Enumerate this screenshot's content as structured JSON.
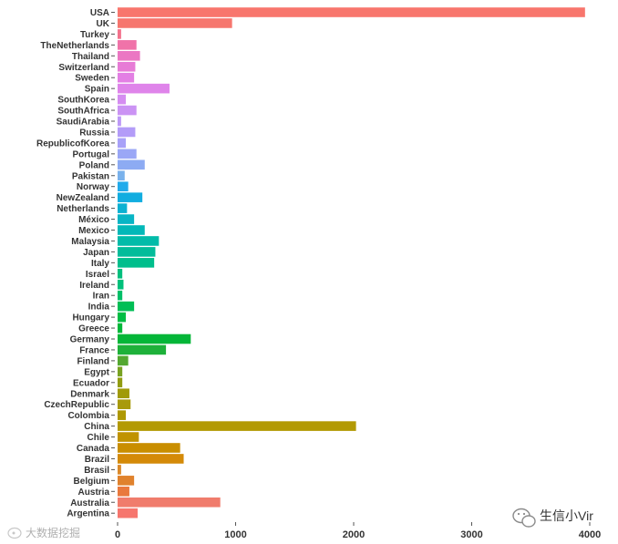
{
  "chart_data": {
    "type": "bar",
    "orientation": "horizontal",
    "title": "",
    "xlabel": "",
    "ylabel": "",
    "xlim": [
      0,
      4000
    ],
    "xticks": [
      0,
      1000,
      2000,
      3000,
      4000
    ],
    "grid": false,
    "legend": "none",
    "categories": [
      "USA",
      "UK",
      "Turkey",
      "TheNetherlands",
      "Thailand",
      "Switzerland",
      "Sweden",
      "Spain",
      "SouthKorea",
      "SouthAfrica",
      "SaudiArabia",
      "Russia",
      "RepublicofKorea",
      "Portugal",
      "Poland",
      "Pakistan",
      "Norway",
      "NewZealand",
      "Netherlands",
      "México",
      "Mexico",
      "Malaysia",
      "Japan",
      "Italy",
      "Israel",
      "Ireland",
      "Iran",
      "India",
      "Hungary",
      "Greece",
      "Germany",
      "France",
      "Finland",
      "Egypt",
      "Ecuador",
      "Denmark",
      "CzechRepublic",
      "Colombia",
      "China",
      "Chile",
      "Canada",
      "Brazil",
      "Brasil",
      "Belgium",
      "Austria",
      "Australia",
      "Argentina"
    ],
    "values": [
      3960,
      970,
      30,
      160,
      190,
      150,
      140,
      440,
      70,
      160,
      30,
      150,
      70,
      160,
      230,
      60,
      90,
      210,
      80,
      140,
      230,
      350,
      320,
      310,
      40,
      50,
      40,
      140,
      70,
      40,
      620,
      410,
      90,
      40,
      40,
      100,
      110,
      70,
      2020,
      180,
      530,
      560,
      30,
      140,
      100,
      870,
      170
    ],
    "colors": [
      "#F8766D",
      "#F6766E",
      "#F3728C",
      "#F073A9",
      "#EB77C3",
      "#E77BD6",
      "#E37FE4",
      "#DF84EA",
      "#D58DF1",
      "#CB93F4",
      "#BD99F7",
      "#B39CF8",
      "#A8A1F8",
      "#9AA7F6",
      "#8DABF3",
      "#7AB2EC",
      "#22ABEB",
      "#12ADE0",
      "#0BB1D2",
      "#08B5C5",
      "#03B8B8",
      "#02BBA9",
      "#02BC9A",
      "#00BE8C",
      "#00BF7D",
      "#00C07B",
      "#00BF68",
      "#00BE55",
      "#00BD44",
      "#00B83A",
      "#04B638",
      "#1EB13A",
      "#53A831",
      "#78A222",
      "#919C11",
      "#A09A09",
      "#A89A0C",
      "#AE9804",
      "#B39A04",
      "#C09300",
      "#C98E00",
      "#D48A08",
      "#DB8A2A",
      "#E0822D",
      "#E9793D",
      "#F07C6C",
      "#F6766E"
    ]
  },
  "watermarks": {
    "right_text": "生信小Vir",
    "left_text": "大数据挖掘"
  }
}
